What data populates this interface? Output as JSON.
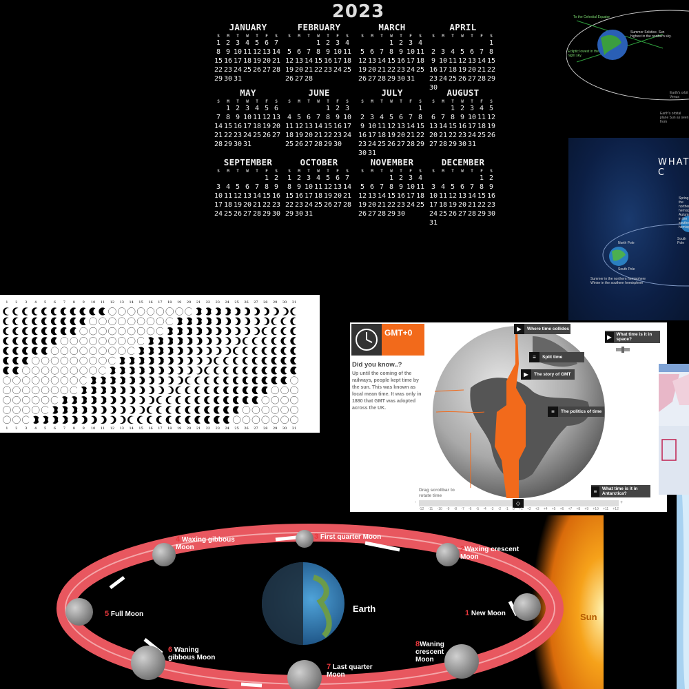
{
  "calendar": {
    "year": "2023",
    "dow": [
      "S",
      "M",
      "T",
      "W",
      "T",
      "F",
      "S"
    ],
    "months": [
      {
        "name": "JANUARY",
        "start": 0,
        "days": 31
      },
      {
        "name": "FEBRUARY",
        "start": 3,
        "days": 28
      },
      {
        "name": "MARCH",
        "start": 3,
        "days": 31
      },
      {
        "name": "APRIL",
        "start": 6,
        "days": 30
      },
      {
        "name": "MAY",
        "start": 1,
        "days": 31
      },
      {
        "name": "JUNE",
        "start": 4,
        "days": 30
      },
      {
        "name": "JULY",
        "start": 6,
        "days": 31
      },
      {
        "name": "AUGUST",
        "start": 2,
        "days": 31
      },
      {
        "name": "SEPTEMBER",
        "start": 5,
        "days": 30
      },
      {
        "name": "OCTOBER",
        "start": 0,
        "days": 31
      },
      {
        "name": "NOVEMBER",
        "start": 3,
        "days": 30
      },
      {
        "name": "DECEMBER",
        "start": 5,
        "days": 31
      }
    ]
  },
  "moon_chart": {
    "days": [
      "1",
      "2",
      "3",
      "4",
      "5",
      "6",
      "7",
      "8",
      "9",
      "10",
      "11",
      "12",
      "13",
      "14",
      "15",
      "16",
      "17",
      "18",
      "19",
      "20",
      "21",
      "22",
      "23",
      "24",
      "25",
      "26",
      "27",
      "28",
      "29",
      "30",
      "31"
    ]
  },
  "gmt": {
    "timezone": "GMT+0",
    "dyk_title": "Did you know..?",
    "dyk_text": "Up until the coming of the railways, people kept time by the sun. This was known as local mean time. It was only in 1880 that GMT was adopted across the UK.",
    "buttons": [
      "Where time collides",
      "What time is it in space?",
      "Split time",
      "The story of GMT",
      "The politics of time",
      "What time is it in Antarctica?"
    ],
    "drag_text": "Drag scrollbar to rotate time",
    "scale": [
      "-12",
      "-11",
      "-10",
      "-9",
      "-8",
      "-7",
      "-6",
      "-5",
      "-4",
      "-3",
      "-2",
      "-1",
      "0",
      "+1",
      "+2",
      "+3",
      "+4",
      "+5",
      "+6",
      "+7",
      "+8",
      "+9",
      "+10",
      "+11",
      "+12"
    ],
    "minus": "-",
    "plus": "+"
  },
  "phases": {
    "earth_label": "Earth",
    "sun_label": "Sun",
    "labels": [
      {
        "num": "1",
        "text": "New Moon"
      },
      {
        "num": "2",
        "text": "Waxing crescent Moon"
      },
      {
        "num": "3",
        "text": "First quarter Moon"
      },
      {
        "num": "4",
        "text": "Waxing gibbous Moon"
      },
      {
        "num": "5",
        "text": "Full Moon"
      },
      {
        "num": "6",
        "text": "Waning gibbous Moon"
      },
      {
        "num": "7",
        "text": "Last quarter Moon"
      },
      {
        "num": "8",
        "text": "Waning crescent Moon"
      }
    ]
  },
  "solstice": {
    "celestial": "To the Celestial Equator",
    "summer": "Summer Solstice. Sun highest in the northern sky.",
    "ecliptic": "Ecliptic lowest in the night sky.",
    "orbit1": "Earth's orbit from Venus",
    "orbit2": "Earth's orbital plane Sun as seen from"
  },
  "seasons": {
    "title": "WHAT C",
    "spring": "Spring in the northern hemisphere Autumn in the southern hemisphere",
    "north_pole": "North Pole",
    "south_pole": "South Pole",
    "south_pole2": "South Pole",
    "summer": "Summer in the northern hemisphere Winter in the southern hemisphere"
  },
  "colors": {
    "orange": "#f26a1b",
    "ring": "#e8575f",
    "sun": "#f6a21a"
  }
}
